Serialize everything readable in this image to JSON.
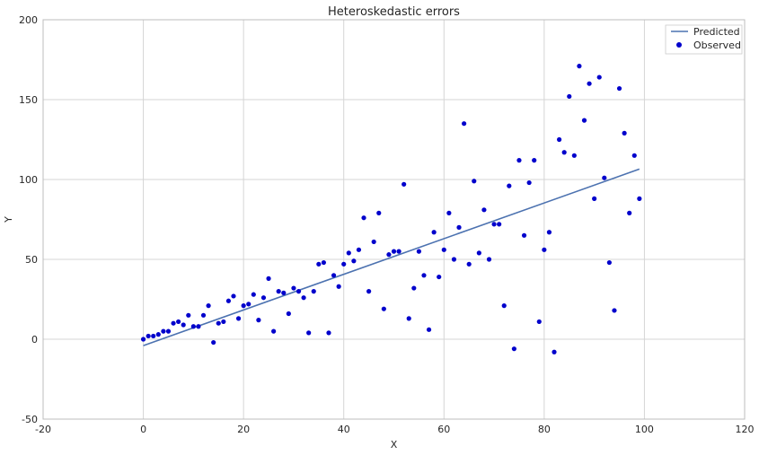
{
  "chart_data": {
    "type": "scatter",
    "title": "Heteroskedastic errors",
    "xlabel": "X",
    "ylabel": "Y",
    "xlim": [
      -20,
      120
    ],
    "ylim": [
      -50,
      200
    ],
    "xticks": [
      -20,
      0,
      20,
      40,
      60,
      80,
      100,
      120
    ],
    "yticks": [
      -50,
      0,
      50,
      100,
      150,
      200
    ],
    "grid": true,
    "legend_position": "top-right",
    "series": [
      {
        "name": "Predicted",
        "kind": "line",
        "color": "#4c72b0",
        "x": [
          0,
          99
        ],
        "y": [
          -4,
          106.5
        ]
      },
      {
        "name": "Observed",
        "kind": "scatter",
        "color": "#0000cc",
        "x": [
          0,
          1,
          2,
          3,
          4,
          5,
          6,
          7,
          8,
          9,
          10,
          11,
          12,
          13,
          14,
          15,
          16,
          17,
          18,
          19,
          20,
          21,
          22,
          23,
          24,
          25,
          26,
          27,
          28,
          29,
          30,
          31,
          32,
          33,
          34,
          35,
          36,
          37,
          38,
          39,
          40,
          41,
          42,
          43,
          44,
          45,
          46,
          47,
          48,
          49,
          50,
          51,
          52,
          53,
          54,
          55,
          56,
          57,
          58,
          59,
          60,
          61,
          62,
          63,
          64,
          65,
          66,
          67,
          68,
          69,
          70,
          71,
          72,
          73,
          74,
          75,
          76,
          77,
          78,
          79,
          80,
          81,
          82,
          83,
          84,
          85,
          86,
          87,
          88,
          89,
          90,
          91,
          92,
          93,
          94,
          95,
          96,
          97,
          98,
          99
        ],
        "y": [
          0,
          2,
          2,
          3,
          5,
          5,
          10,
          11,
          9,
          15,
          8,
          8,
          15,
          21,
          -2,
          10,
          11,
          24,
          27,
          13,
          21,
          22,
          28,
          12,
          26,
          38,
          5,
          30,
          29,
          16,
          32,
          30,
          26,
          4,
          30,
          47,
          48,
          4,
          40,
          33,
          47,
          54,
          49,
          56,
          76,
          30,
          61,
          79,
          19,
          53,
          55,
          55,
          97,
          13,
          32,
          55,
          40,
          6,
          67,
          39,
          56,
          79,
          50,
          70,
          135,
          47,
          99,
          54,
          81,
          50,
          72,
          72,
          21,
          96,
          -6,
          112,
          65,
          98,
          112,
          11,
          56,
          67,
          -8,
          125,
          117,
          152,
          115,
          171,
          137,
          160,
          88,
          164,
          101,
          48,
          18,
          157,
          129,
          79,
          115,
          88
        ]
      }
    ]
  }
}
